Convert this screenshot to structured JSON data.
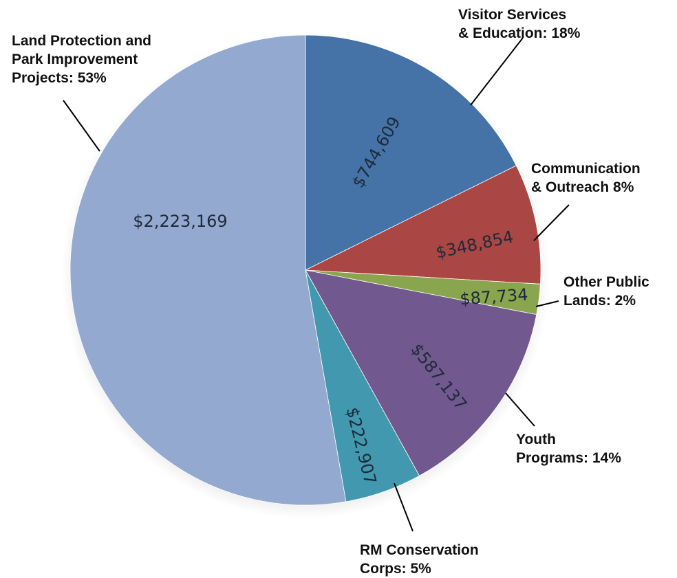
{
  "chart_data": {
    "type": "pie",
    "start_angle_deg": 0,
    "direction": "clockwise",
    "slices": [
      {
        "value": 744609,
        "value_label": "$744,609",
        "callout": [
          "Visitor Services",
          "& Education: 18%"
        ],
        "color": "#4573A7"
      },
      {
        "value": 348854,
        "value_label": "$348,854",
        "callout": [
          "Communication",
          "& Outreach 8%"
        ],
        "color": "#AA4643"
      },
      {
        "value": 87734,
        "value_label": "$87,734",
        "callout": [
          "Other Public",
          "Lands: 2%"
        ],
        "color": "#89A54E"
      },
      {
        "value": 587137,
        "value_label": "$587,137",
        "callout": [
          "Youth",
          "Programs: 14%"
        ],
        "color": "#71588F"
      },
      {
        "value": 222907,
        "value_label": "$222,907",
        "callout": [
          "RM Conservation",
          "Corps: 5%"
        ],
        "color": "#4198AF"
      },
      {
        "value": 2223169,
        "value_label": "$2,223,169",
        "callout": [
          "Land Protection and",
          "Park Improvement",
          "Projects: 53%"
        ],
        "color": "#93A9CF"
      }
    ]
  }
}
